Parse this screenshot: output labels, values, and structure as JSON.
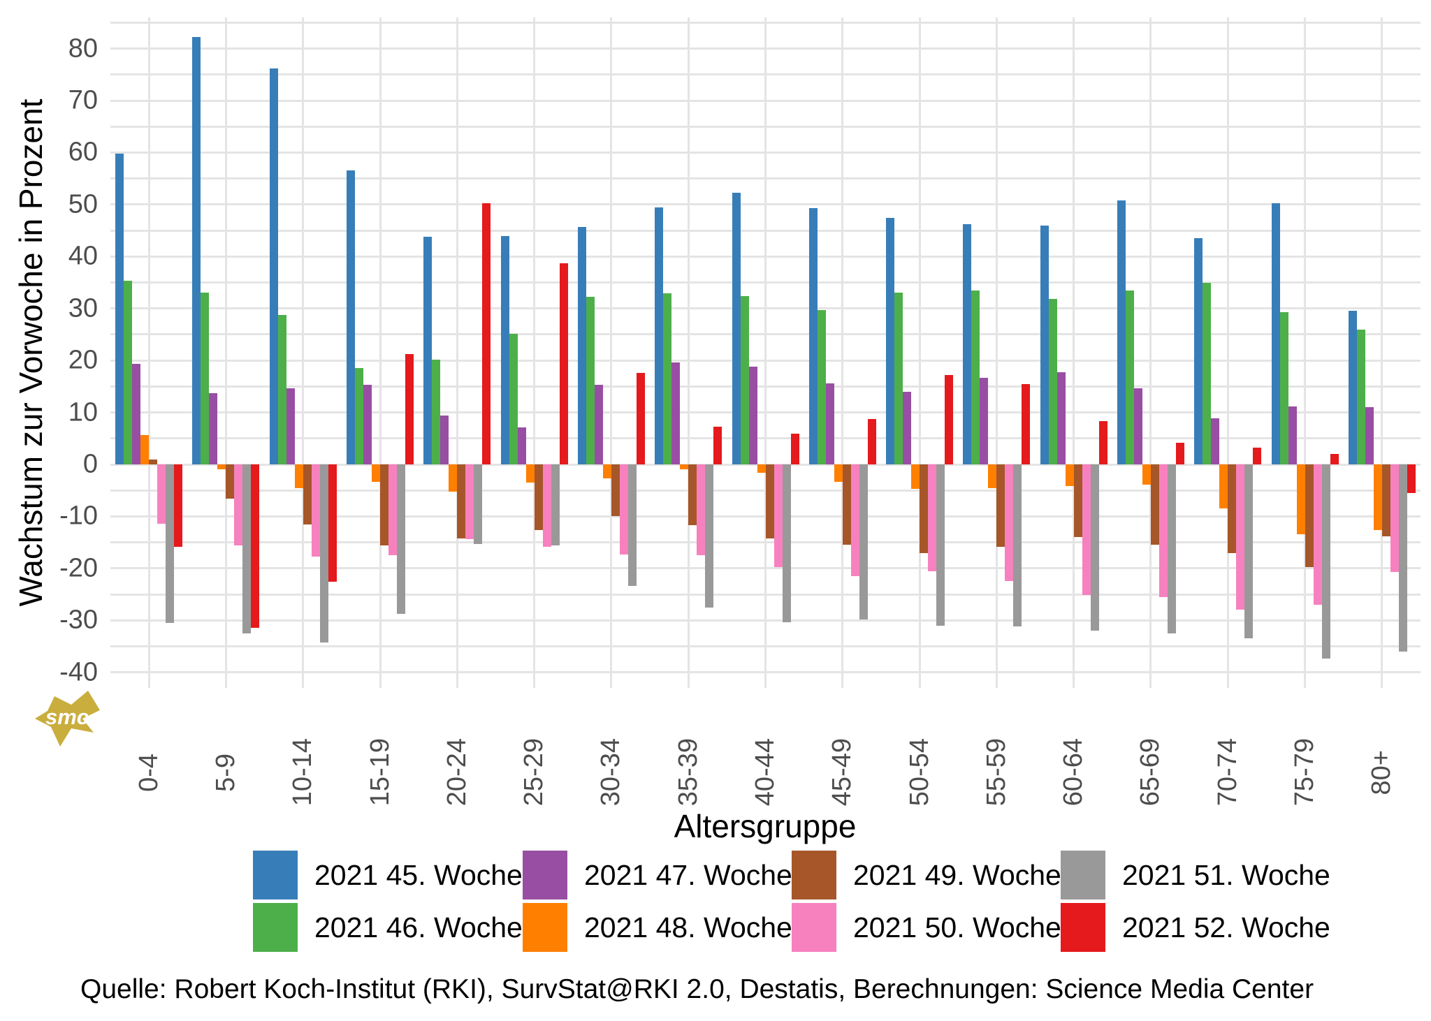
{
  "y_axis": {
    "title": "Wachstum zur Vorwoche in Prozent",
    "ticks": [
      80,
      70,
      60,
      50,
      40,
      30,
      20,
      10,
      0,
      -10,
      -20,
      -30,
      -40
    ]
  },
  "x_axis": {
    "title": "Altersgruppe"
  },
  "source_line": "Quelle: Robert Koch-Institut (RKI), SurvStat@RKI 2.0, Destatis, Berechnungen: Science Media Center",
  "logo_text": "smc",
  "logo_color": "#c9ae3e",
  "colors": {
    "grid": "#e4e4e4",
    "axis_text": "#4d4d4d",
    "title_text": "#000000"
  },
  "chart_data": {
    "type": "bar",
    "title": "",
    "xlabel": "Altersgruppe",
    "ylabel": "Wachstum zur Vorwoche in Prozent",
    "ylim": [
      -43,
      86
    ],
    "grid": "on",
    "legend_position": "bottom",
    "categories": [
      "0-4",
      "5-9",
      "10-14",
      "15-19",
      "20-24",
      "25-29",
      "30-34",
      "35-39",
      "40-44",
      "45-49",
      "50-54",
      "55-59",
      "60-64",
      "65-69",
      "70-74",
      "75-79",
      "80+"
    ],
    "series": [
      {
        "name": "2021 45. Woche",
        "color": "#377eb8",
        "values": [
          59.8,
          82.2,
          76.2,
          56.6,
          43.8,
          43.9,
          45.7,
          49.4,
          52.3,
          49.3,
          47.5,
          46.2,
          45.9,
          50.8,
          43.6,
          50.3,
          29.5
        ]
      },
      {
        "name": "2021 46. Woche",
        "color": "#4daf4a",
        "values": [
          35.3,
          33.0,
          28.7,
          18.5,
          20.1,
          25.1,
          32.2,
          32.9,
          32.4,
          29.7,
          33.1,
          33.4,
          31.8,
          33.4,
          35.0,
          29.3,
          26.0
        ]
      },
      {
        "name": "2021 47. Woche",
        "color": "#984ea3",
        "values": [
          19.4,
          13.7,
          14.6,
          15.3,
          9.4,
          7.1,
          15.3,
          19.6,
          18.8,
          15.6,
          14.0,
          16.7,
          17.8,
          14.7,
          8.9,
          11.2,
          11.0
        ]
      },
      {
        "name": "2021 48. Woche",
        "color": "#ff7f00",
        "values": [
          5.7,
          -0.9,
          -4.6,
          -3.4,
          -5.3,
          -3.5,
          -2.7,
          -1.0,
          -1.6,
          -3.3,
          -4.7,
          -4.6,
          -4.2,
          -3.9,
          -8.4,
          -13.5,
          -12.6
        ]
      },
      {
        "name": "2021 49. Woche",
        "color": "#a65628",
        "values": [
          0.9,
          -6.6,
          -11.5,
          -15.6,
          -14.3,
          -12.6,
          -10.0,
          -11.7,
          -14.2,
          -15.5,
          -17.0,
          -15.8,
          -14.0,
          -15.5,
          -17.0,
          -19.8,
          -13.9
        ]
      },
      {
        "name": "2021 50. Woche",
        "color": "#f781bf",
        "values": [
          -11.4,
          -15.6,
          -17.7,
          -17.5,
          -14.4,
          -15.8,
          -17.3,
          -17.5,
          -19.8,
          -21.5,
          -20.5,
          -22.4,
          -25.1,
          -25.5,
          -27.9,
          -27.0,
          -20.7
        ]
      },
      {
        "name": "2021 51. Woche",
        "color": "#999999",
        "values": [
          -30.5,
          -32.5,
          -34.3,
          -28.7,
          -15.3,
          -15.6,
          -23.4,
          -27.6,
          -30.4,
          -29.8,
          -31.1,
          -31.2,
          -32.0,
          -32.5,
          -33.5,
          -37.3,
          -36.0
        ]
      },
      {
        "name": "2021 52. Woche",
        "color": "#e41a1c",
        "values": [
          -15.9,
          -31.5,
          -22.6,
          21.2,
          50.3,
          38.7,
          17.6,
          7.3,
          5.9,
          8.7,
          17.2,
          15.4,
          8.3,
          4.2,
          3.2,
          2.0,
          -5.5
        ]
      }
    ]
  }
}
